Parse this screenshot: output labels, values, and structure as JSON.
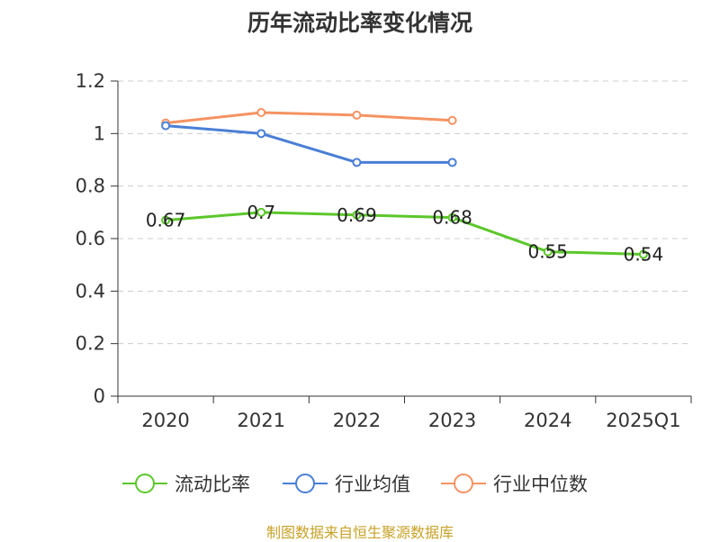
{
  "chart_data": {
    "type": "line",
    "title": "历年流动比率变化情况",
    "categories": [
      "2020",
      "2021",
      "2022",
      "2023",
      "2024",
      "2025Q1"
    ],
    "series": [
      {
        "name": "流动比率",
        "color": "#5cc72b",
        "values": [
          0.67,
          0.7,
          0.69,
          0.68,
          0.55,
          0.54
        ],
        "show_labels": true
      },
      {
        "name": "行业均值",
        "color": "#4a7fd6",
        "values": [
          1.03,
          1.0,
          0.89,
          0.89,
          null,
          null
        ],
        "show_labels": false
      },
      {
        "name": "行业中位数",
        "color": "#f59362",
        "values": [
          1.04,
          1.08,
          1.07,
          1.05,
          null,
          null
        ],
        "show_labels": false
      }
    ],
    "y_ticks": [
      "0",
      "0.2",
      "0.4",
      "0.6",
      "0.8",
      "1",
      "1.2"
    ],
    "ylim": [
      0,
      1.2
    ],
    "grid": true,
    "legend_position": "bottom"
  },
  "footer": {
    "source": "制图数据来自恒生聚源数据库"
  }
}
